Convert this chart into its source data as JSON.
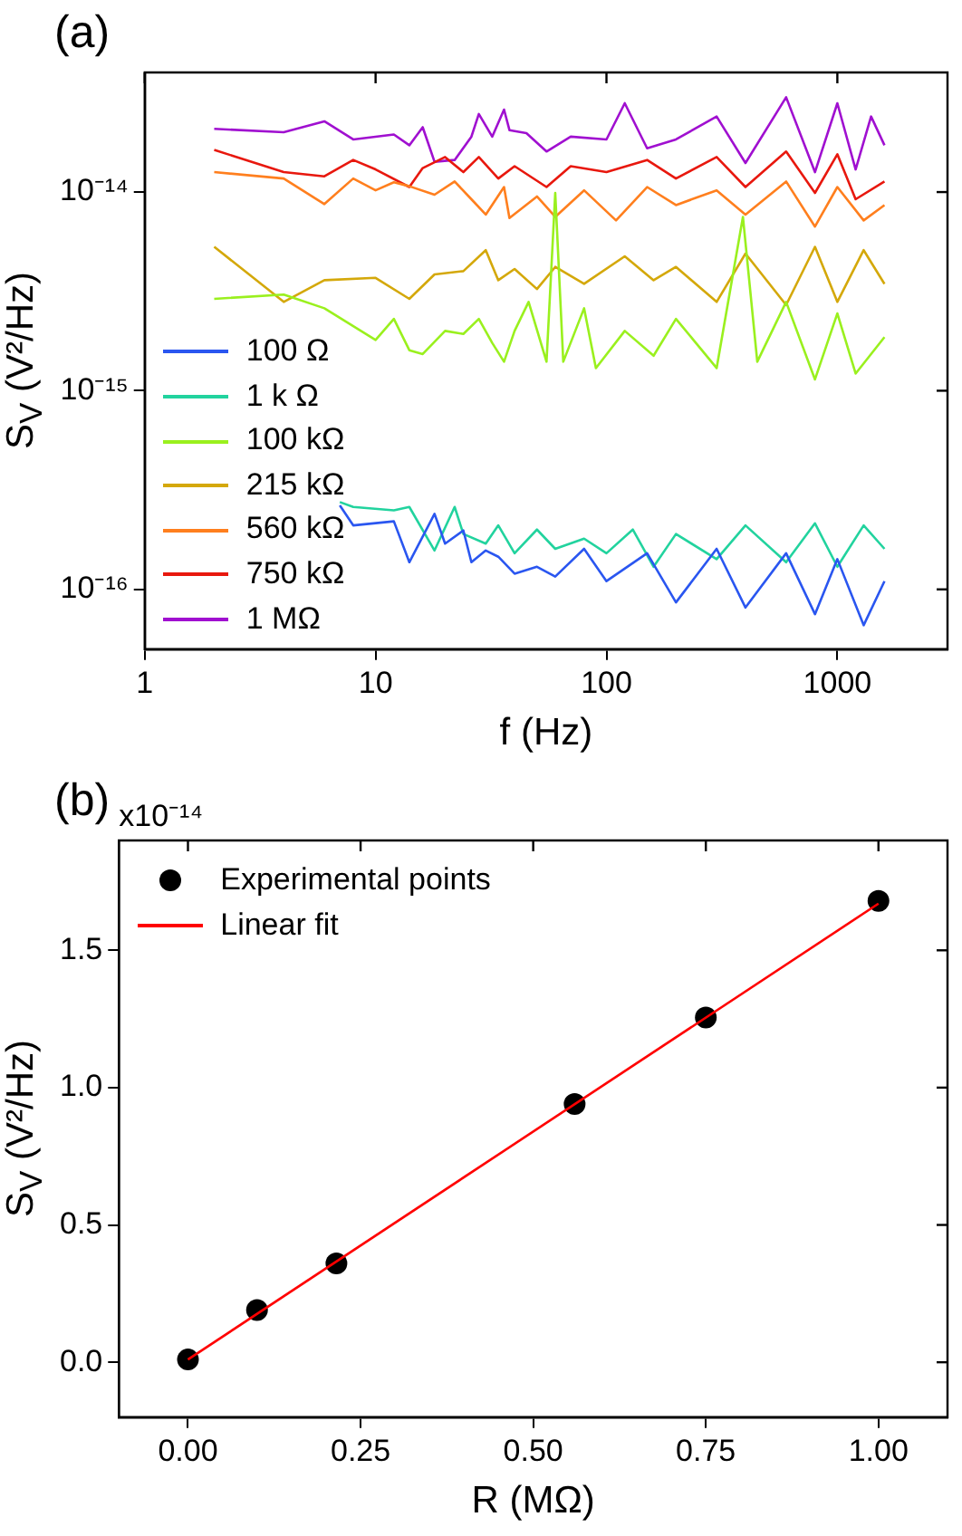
{
  "chart_data": [
    {
      "type": "line",
      "title": "(a)",
      "xlabel": "f (Hz)",
      "ylabel": "S$_{V}$ (V²/Hz)",
      "log": "xy",
      "xlim": [
        1,
        3000
      ],
      "xticks": [
        1,
        10,
        100,
        1000
      ],
      "ylim": [
        5e-17,
        4e-14
      ],
      "yticks": [
        {
          "value": 1e-16,
          "label": "10⁻¹⁶"
        },
        {
          "value": 1e-15,
          "label": "10⁻¹⁵"
        },
        {
          "value": 1e-14,
          "label": "10⁻¹⁴"
        }
      ],
      "legend": "bottom left",
      "grid": false,
      "marker": "none",
      "line_style": "solid",
      "series": [
        {
          "name": "100 Ω",
          "color": "#2a56f0",
          "x": [
            7,
            8,
            12,
            14,
            18,
            20,
            24,
            26,
            30,
            34,
            40,
            50,
            60,
            80,
            100,
            150,
            200,
            300,
            400,
            600,
            800,
            1000,
            1300,
            1600
          ],
          "values": [
            2.65e-16,
            2.1e-16,
            2.2e-16,
            1.37e-16,
            2.4e-16,
            1.7e-16,
            1.98e-16,
            1.37e-16,
            1.57e-16,
            1.46e-16,
            1.2e-16,
            1.3e-16,
            1.16e-16,
            1.6e-16,
            1.1e-16,
            1.52e-16,
            8.6e-17,
            1.6e-16,
            8.1e-17,
            1.52e-16,
            7.5e-17,
            1.42e-16,
            6.6e-17,
            1.1e-16
          ]
        },
        {
          "name": "1 k Ω",
          "color": "#22d39e",
          "x": [
            7,
            8,
            12,
            14,
            18,
            22,
            24,
            30,
            34,
            40,
            50,
            60,
            80,
            100,
            130,
            160,
            200,
            300,
            400,
            600,
            800,
            1000,
            1300,
            1600
          ],
          "values": [
            2.75e-16,
            2.6e-16,
            2.5e-16,
            2.6e-16,
            1.57e-16,
            2.6e-16,
            1.9e-16,
            1.7e-16,
            2.1e-16,
            1.52e-16,
            2e-16,
            1.6e-16,
            1.8e-16,
            1.52e-16,
            2e-16,
            1.3e-16,
            1.9e-16,
            1.42e-16,
            2.1e-16,
            1.37e-16,
            2.15e-16,
            1.3e-16,
            2.1e-16,
            1.6e-16
          ]
        },
        {
          "name": "100 kΩ",
          "color": "#9af01e",
          "x": [
            2,
            4,
            6,
            10,
            12,
            14,
            16,
            20,
            24,
            28,
            32,
            36,
            40,
            46,
            55,
            60,
            65,
            80,
            90,
            120,
            160,
            200,
            300,
            390,
            450,
            600,
            800,
            1000,
            1200,
            1600
          ],
          "values": [
            2.9e-15,
            3.05e-15,
            2.6e-15,
            1.8e-15,
            2.3e-15,
            1.6e-15,
            1.53e-15,
            2e-15,
            1.93e-15,
            2.3e-15,
            1.74e-15,
            1.4e-15,
            2e-15,
            2.8e-15,
            1.4e-15,
            9.9e-15,
            1.4e-15,
            2.6e-15,
            1.3e-15,
            2e-15,
            1.5e-15,
            2.3e-15,
            1.3e-15,
            7.5e-15,
            1.4e-15,
            2.8e-15,
            1.14e-15,
            2.45e-15,
            1.22e-15,
            1.86e-15
          ]
        },
        {
          "name": "215 kΩ",
          "color": "#d4a80a",
          "x": [
            2,
            4,
            6,
            10,
            14,
            18,
            24,
            30,
            34,
            40,
            50,
            60,
            80,
            120,
            160,
            200,
            300,
            400,
            600,
            800,
            1000,
            1300,
            1600
          ],
          "values": [
            5.3e-15,
            2.8e-15,
            3.6e-15,
            3.7e-15,
            2.9e-15,
            3.85e-15,
            4e-15,
            5.1e-15,
            3.6e-15,
            4.1e-15,
            3.25e-15,
            4.2e-15,
            3.45e-15,
            4.75e-15,
            3.6e-15,
            4.2e-15,
            2.8e-15,
            4.9e-15,
            2.7e-15,
            5.3e-15,
            2.8e-15,
            5.1e-15,
            3.45e-15
          ]
        },
        {
          "name": "560 kΩ",
          "color": "#ff7f1e",
          "x": [
            2,
            4,
            6,
            8,
            10,
            12,
            14,
            18,
            22,
            26,
            30,
            36,
            38,
            50,
            60,
            80,
            110,
            150,
            200,
            300,
            400,
            600,
            800,
            1000,
            1300,
            1600
          ],
          "values": [
            1.26e-14,
            1.17e-14,
            8.7e-15,
            1.17e-14,
            1.02e-14,
            1.12e-14,
            1.07e-14,
            9.7e-15,
            1.13e-14,
            9.2e-15,
            7.7e-15,
            1.06e-14,
            7.4e-15,
            9.5e-15,
            7.5e-15,
            1.02e-14,
            7.2e-15,
            1.06e-14,
            8.6e-15,
            1.02e-14,
            7.7e-15,
            1.13e-14,
            6.7e-15,
            1.06e-14,
            7.2e-15,
            8.6e-15
          ]
        },
        {
          "name": "750 kΩ",
          "color": "#e8180e",
          "x": [
            2,
            4,
            6,
            8,
            10,
            14,
            16,
            20,
            24,
            28,
            34,
            40,
            55,
            70,
            100,
            150,
            200,
            300,
            400,
            600,
            800,
            1000,
            1200,
            1600
          ],
          "values": [
            1.63e-14,
            1.26e-14,
            1.2e-14,
            1.45e-14,
            1.3e-14,
            1.06e-14,
            1.32e-14,
            1.5e-14,
            1.26e-14,
            1.5e-14,
            1.17e-14,
            1.35e-14,
            1.06e-14,
            1.35e-14,
            1.26e-14,
            1.45e-14,
            1.17e-14,
            1.5e-14,
            1.06e-14,
            1.6e-14,
            9.9e-15,
            1.55e-14,
            9.2e-15,
            1.13e-14
          ]
        },
        {
          "name": "1 MΩ",
          "color": "#a010d0",
          "x": [
            2,
            4,
            6,
            8,
            12,
            14,
            16,
            18,
            22,
            26,
            28,
            32,
            36,
            38,
            45,
            55,
            70,
            100,
            120,
            150,
            200,
            300,
            400,
            600,
            800,
            1000,
            1200,
            1400,
            1600
          ],
          "values": [
            2.08e-14,
            2e-14,
            2.27e-14,
            1.84e-14,
            1.95e-14,
            1.72e-14,
            2.12e-14,
            1.42e-14,
            1.45e-14,
            1.9e-14,
            2.47e-14,
            1.9e-14,
            2.6e-14,
            2.05e-14,
            1.98e-14,
            1.6e-14,
            1.9e-14,
            1.84e-14,
            2.8e-14,
            1.66e-14,
            1.84e-14,
            2.4e-14,
            1.4e-14,
            3e-14,
            1.26e-14,
            2.8e-14,
            1.3e-14,
            2.4e-14,
            1.72e-14
          ]
        }
      ]
    },
    {
      "type": "scatter",
      "title": "(b)",
      "xlabel": "R (MΩ)",
      "ylabel": "S$_{V}$ (V²/Hz)",
      "annotations": [
        "x10⁻¹⁴"
      ],
      "xlim": [
        -0.1,
        1.1
      ],
      "xticks": [
        {
          "value": 0,
          "label": "0.00"
        },
        {
          "value": 0.25,
          "label": "0.25"
        },
        {
          "value": 0.5,
          "label": "0.50"
        },
        {
          "value": 0.75,
          "label": "0.75"
        },
        {
          "value": 1,
          "label": "1.00"
        }
      ],
      "ylim": [
        -0.2,
        1.9
      ],
      "yticks": [
        {
          "value": 0,
          "label": "0.0"
        },
        {
          "value": 0.5,
          "label": "0.5"
        },
        {
          "value": 1,
          "label": "1.0"
        },
        {
          "value": 1.5,
          "label": "1.5"
        }
      ],
      "legend": "top left",
      "grid": false,
      "series": [
        {
          "name": "Experimental points",
          "color": "#000000",
          "marker": "circle",
          "x": [
            0,
            0.1,
            0.215,
            0.56,
            0.75,
            1
          ],
          "values": [
            0.01,
            0.19,
            0.36,
            0.94,
            1.255,
            1.68
          ]
        },
        {
          "name": "Linear fit",
          "type": "line",
          "color": "#ff0000",
          "x": [
            0,
            1
          ],
          "values": [
            0.01,
            1.67
          ]
        }
      ]
    }
  ]
}
